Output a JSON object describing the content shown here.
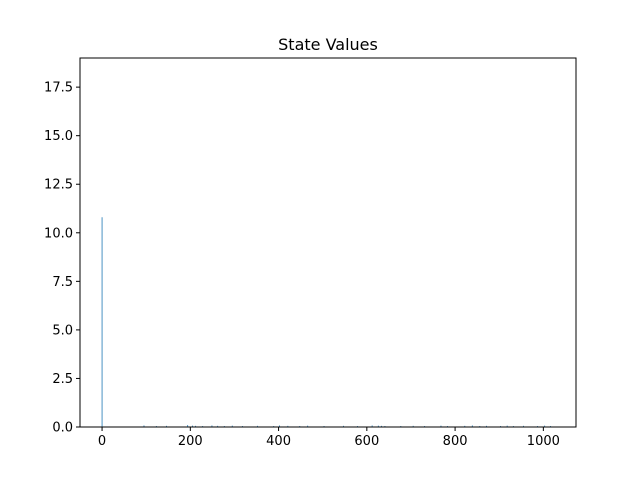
{
  "chart_data": {
    "type": "bar",
    "title": "State Values",
    "xlabel": "",
    "ylabel": "",
    "xlim": [
      -50,
      1074
    ],
    "ylim": [
      0,
      19
    ],
    "x_ticks": [
      0,
      200,
      400,
      600,
      800,
      1000
    ],
    "x_tick_labels": [
      "0",
      "200",
      "400",
      "600",
      "800",
      "1000"
    ],
    "y_ticks": [
      0,
      2.5,
      5,
      7.5,
      10,
      12.5,
      15,
      17.5
    ],
    "y_tick_labels": [
      "0.0",
      "2.5",
      "5.0",
      "7.5",
      "10.0",
      "12.5",
      "15.0",
      "17.5"
    ],
    "grid": false,
    "bar_color": "#1f77b4",
    "series": [
      {
        "x": [
          0,
          95,
          123,
          146,
          194,
          205,
          212,
          228,
          249,
          262,
          277,
          295,
          318,
          352,
          389,
          402,
          421,
          448,
          466,
          503,
          547,
          579,
          612,
          626,
          633,
          641,
          677,
          705,
          731,
          768,
          783,
          822,
          839,
          856,
          871,
          903,
          918,
          932,
          955,
          987,
          1003,
          1016
        ],
        "values": [
          10.8,
          0.08,
          0.05,
          0.06,
          0.1,
          0.07,
          0.06,
          0.05,
          0.08,
          0.06,
          0.05,
          0.07,
          0.05,
          0.06,
          0.05,
          0.08,
          0.06,
          0.05,
          0.07,
          0.05,
          0.06,
          0.05,
          0.08,
          0.07,
          0.06,
          0.05,
          0.05,
          0.06,
          0.05,
          0.07,
          0.05,
          0.06,
          0.08,
          0.05,
          0.06,
          0.05,
          0.07,
          0.05,
          0.06,
          0.05,
          0.07,
          0.05
        ]
      }
    ]
  }
}
